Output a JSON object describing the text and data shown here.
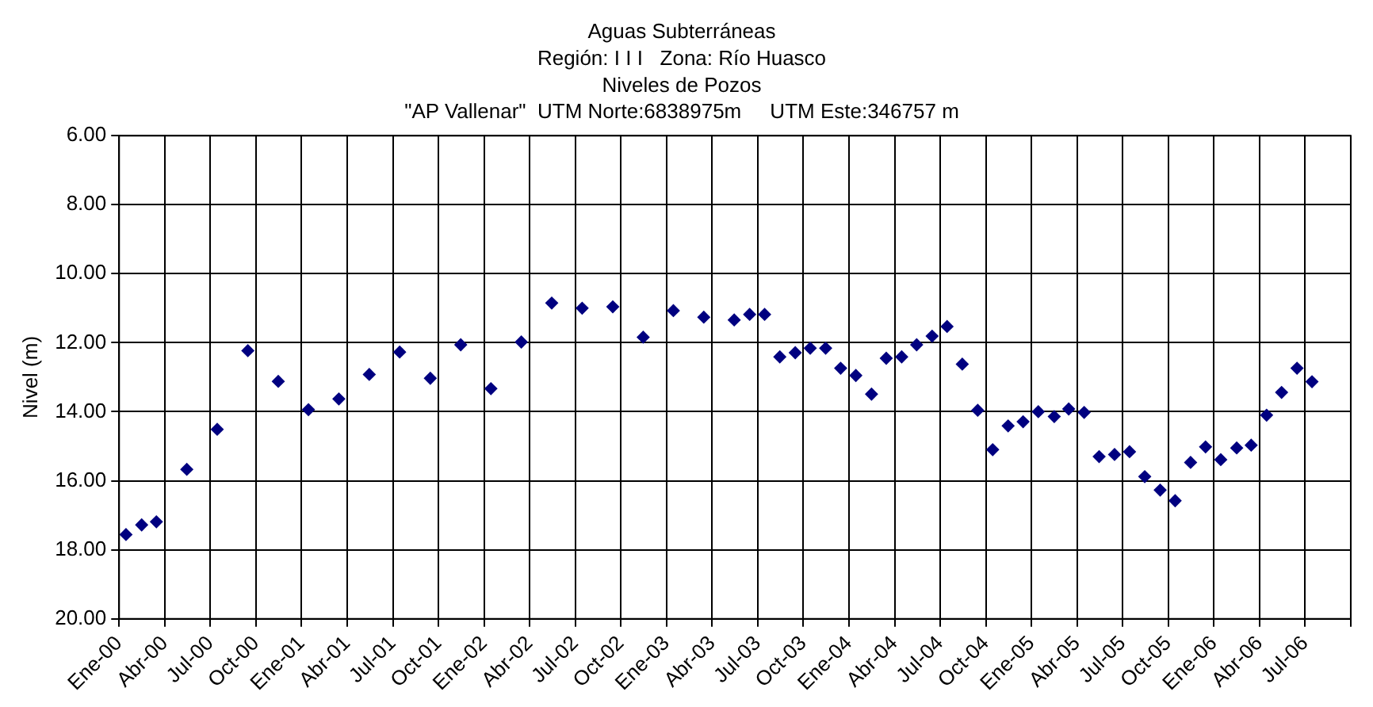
{
  "chart_data": {
    "type": "scatter",
    "title": [
      "Aguas Subterráneas",
      "Región: I I I   Zona: Río Huasco",
      "Niveles de Pozos",
      "\"AP Vallenar\"  UTM Norte:6838975m     UTM Este:346757 m"
    ],
    "ylabel": "Nivel (m)",
    "x": [
      "2000-01-15",
      "2000-02-15",
      "2000-03-15",
      "2000-05-15",
      "2000-07-15",
      "2000-09-15",
      "2000-11-15",
      "2001-01-15",
      "2001-03-15",
      "2001-05-15",
      "2001-07-15",
      "2001-09-15",
      "2001-11-15",
      "2002-01-15",
      "2002-03-15",
      "2002-05-15",
      "2002-07-15",
      "2002-09-15",
      "2002-11-15",
      "2003-01-15",
      "2003-03-15",
      "2003-05-15",
      "2003-06-15",
      "2003-07-15",
      "2003-08-15",
      "2003-09-15",
      "2003-10-15",
      "2003-11-15",
      "2003-12-15",
      "2004-01-15",
      "2004-02-15",
      "2004-03-15",
      "2004-04-15",
      "2004-05-15",
      "2004-06-15",
      "2004-07-15",
      "2004-08-15",
      "2004-09-15",
      "2004-10-15",
      "2004-11-15",
      "2004-12-15",
      "2005-01-15",
      "2005-02-15",
      "2005-03-15",
      "2005-04-15",
      "2005-05-15",
      "2005-06-15",
      "2005-07-15",
      "2005-08-15",
      "2005-09-15",
      "2005-10-15",
      "2005-11-15",
      "2005-12-15",
      "2006-01-15",
      "2006-02-15",
      "2006-03-15",
      "2006-04-15",
      "2006-05-15",
      "2006-06-15",
      "2006-07-15"
    ],
    "series": [
      {
        "color": "#000080",
        "values": [
          17.56,
          17.28,
          17.19,
          15.67,
          14.51,
          12.23,
          13.12,
          13.94,
          13.63,
          12.92,
          12.27,
          13.03,
          12.06,
          13.33,
          11.98,
          10.85,
          11.0,
          10.96,
          11.84,
          11.07,
          11.26,
          11.34,
          11.18,
          11.18,
          12.41,
          12.29,
          12.16,
          12.16,
          12.74,
          12.95,
          13.49,
          12.45,
          12.41,
          12.06,
          11.81,
          11.53,
          12.62,
          13.96,
          15.1,
          14.41,
          14.29,
          14.0,
          14.14,
          13.92,
          14.02,
          15.3,
          15.24,
          15.16,
          15.88,
          16.27,
          16.58,
          15.47,
          15.02,
          15.39,
          15.05,
          14.97,
          14.1,
          13.44,
          12.74,
          13.13
        ]
      }
    ],
    "xlim": [
      "2000-01",
      "2006-10"
    ],
    "xticks": [
      {
        "value": "2000-01",
        "label": "Ene-00"
      },
      {
        "value": "2000-04",
        "label": "Abr-00"
      },
      {
        "value": "2000-07",
        "label": "Jul-00"
      },
      {
        "value": "2000-10",
        "label": "Oct-00"
      },
      {
        "value": "2001-01",
        "label": "Ene-01"
      },
      {
        "value": "2001-04",
        "label": "Abr-01"
      },
      {
        "value": "2001-07",
        "label": "Jul-01"
      },
      {
        "value": "2001-10",
        "label": "Oct-01"
      },
      {
        "value": "2002-01",
        "label": "Ene-02"
      },
      {
        "value": "2002-04",
        "label": "Abr-02"
      },
      {
        "value": "2002-07",
        "label": "Jul-02"
      },
      {
        "value": "2002-10",
        "label": "Oct-02"
      },
      {
        "value": "2003-01",
        "label": "Ene-03"
      },
      {
        "value": "2003-04",
        "label": "Abr-03"
      },
      {
        "value": "2003-07",
        "label": "Jul-03"
      },
      {
        "value": "2003-10",
        "label": "Oct-03"
      },
      {
        "value": "2004-01",
        "label": "Ene-04"
      },
      {
        "value": "2004-04",
        "label": "Abr-04"
      },
      {
        "value": "2004-07",
        "label": "Jul-04"
      },
      {
        "value": "2004-10",
        "label": "Oct-04"
      },
      {
        "value": "2005-01",
        "label": "Ene-05"
      },
      {
        "value": "2005-04",
        "label": "Abr-05"
      },
      {
        "value": "2005-07",
        "label": "Jul-05"
      },
      {
        "value": "2005-10",
        "label": "Oct-05"
      },
      {
        "value": "2006-01",
        "label": "Ene-06"
      },
      {
        "value": "2006-04",
        "label": "Abr-06"
      },
      {
        "value": "2006-07",
        "label": "Jul-06"
      },
      {
        "value": "2006-10",
        "label": null
      }
    ],
    "ylim": [
      20,
      6
    ],
    "yticks": [
      {
        "value": 6,
        "label": "6.00"
      },
      {
        "value": 8,
        "label": "8.00"
      },
      {
        "value": 10,
        "label": "10.00"
      },
      {
        "value": 12,
        "label": "12.00"
      },
      {
        "value": 14,
        "label": "14.00"
      },
      {
        "value": 16,
        "label": "16.00"
      },
      {
        "value": 18,
        "label": "18.00"
      },
      {
        "value": 20,
        "label": "20.00"
      }
    ],
    "grid": true,
    "legend": false,
    "marker": "diamond"
  }
}
